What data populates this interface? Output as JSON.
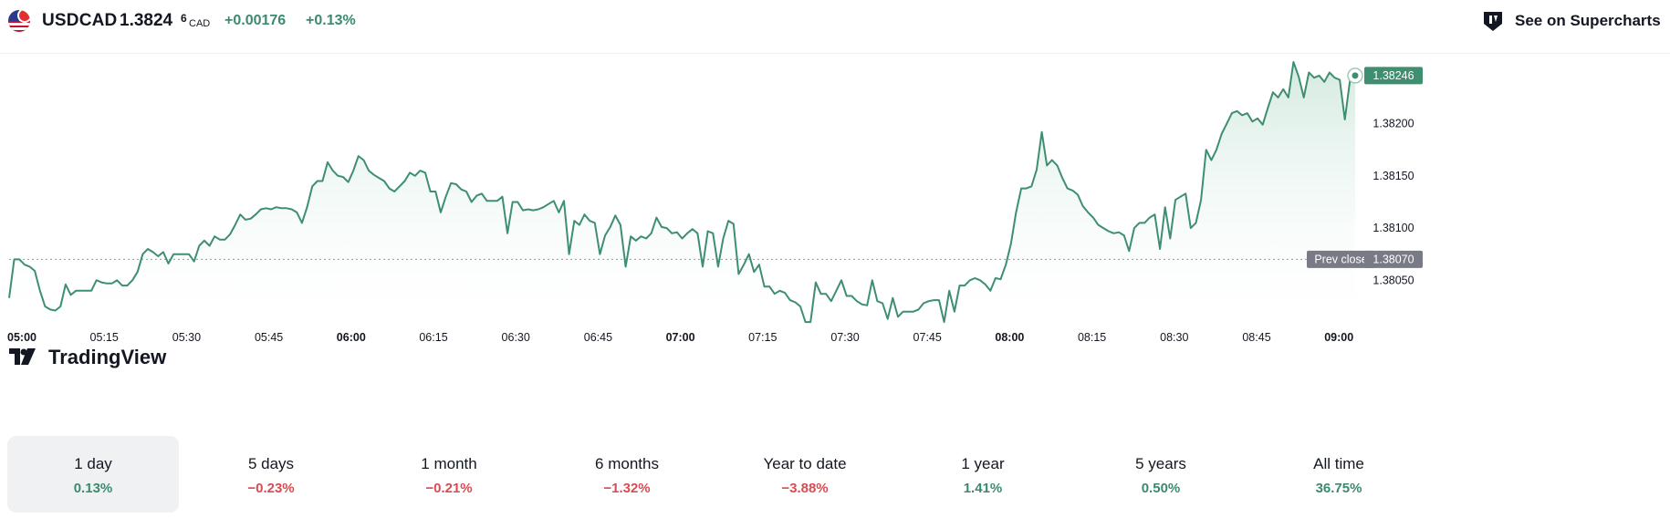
{
  "header": {
    "symbol": "USDCAD",
    "price_main": "1.3824",
    "price_sup": "6",
    "currency": "CAD",
    "change_abs": "+0.00176",
    "change_pct": "+0.13%",
    "supercharts_label": "See on Supercharts",
    "flag_icon": "usd-cad-flag-icon",
    "supercharts_icon": "tradingview-logo-icon"
  },
  "watermark": "TradingView",
  "colors": {
    "line": "#3d8f70",
    "area_top": "#d2e9df",
    "positive": "#3c8a6e",
    "negative": "#d94b52",
    "prev_close_badge": "#787b86"
  },
  "chart_data": {
    "type": "area",
    "x_tick_labels": [
      "05:00",
      "05:15",
      "05:30",
      "05:45",
      "06:00",
      "06:15",
      "06:30",
      "06:45",
      "07:00",
      "07:15",
      "07:30",
      "07:45",
      "08:00",
      "08:15",
      "08:30",
      "08:45",
      "09:00"
    ],
    "bold_ticks": [
      "05:00",
      "06:00",
      "07:00",
      "08:00",
      "09:00"
    ],
    "y_tick_labels": [
      "1.38050",
      "1.38100",
      "1.38150",
      "1.38200"
    ],
    "ylim": [
      1.38004,
      1.38266
    ],
    "last_price_label": "1.38246",
    "prev_close_label": "Prev close",
    "prev_close_value": "1.38070",
    "series": [
      {
        "values": [
          1.38033,
          1.3807,
          1.3807,
          1.38065,
          1.38063,
          1.38059,
          1.3804,
          1.38025,
          1.38022,
          1.38021,
          1.38025,
          1.38046,
          1.38036,
          1.3804,
          1.3804,
          1.3804,
          1.3804,
          1.3805,
          1.38048,
          1.38047,
          1.38047,
          1.3805,
          1.38045,
          1.38045,
          1.3805,
          1.38058,
          1.38075,
          1.3808,
          1.38077,
          1.38073,
          1.38077,
          1.38066,
          1.38075,
          1.38075,
          1.38075,
          1.38075,
          1.38068,
          1.38083,
          1.38088,
          1.38083,
          1.38092,
          1.38089,
          1.38089,
          1.38094,
          1.38103,
          1.38113,
          1.38108,
          1.38109,
          1.38113,
          1.38118,
          1.38119,
          1.38118,
          1.3812,
          1.38119,
          1.38119,
          1.38118,
          1.38115,
          1.38105,
          1.3812,
          1.3814,
          1.38145,
          1.38145,
          1.38163,
          1.38155,
          1.3815,
          1.38149,
          1.38144,
          1.38155,
          1.38169,
          1.38165,
          1.38155,
          1.38151,
          1.38148,
          1.38145,
          1.38138,
          1.38135,
          1.3814,
          1.38145,
          1.38153,
          1.3815,
          1.38155,
          1.38153,
          1.38135,
          1.38135,
          1.38115,
          1.3813,
          1.38143,
          1.38142,
          1.38137,
          1.38135,
          1.38125,
          1.38131,
          1.38133,
          1.38126,
          1.38126,
          1.38126,
          1.3813,
          1.38095,
          1.38125,
          1.38125,
          1.38117,
          1.38118,
          1.38117,
          1.38118,
          1.3812,
          1.38123,
          1.38126,
          1.38115,
          1.38126,
          1.38075,
          1.38107,
          1.38103,
          1.38113,
          1.38107,
          1.38105,
          1.38075,
          1.38093,
          1.38101,
          1.38112,
          1.38103,
          1.38063,
          1.38092,
          1.38088,
          1.38092,
          1.3809,
          1.38095,
          1.3811,
          1.38101,
          1.381,
          1.38095,
          1.38096,
          1.3809,
          1.38095,
          1.38099,
          1.38095,
          1.38063,
          1.38097,
          1.38095,
          1.38063,
          1.3809,
          1.38107,
          1.38104,
          1.38056,
          1.38065,
          1.38075,
          1.38058,
          1.38065,
          1.38044,
          1.38044,
          1.38037,
          1.3804,
          1.38038,
          1.38031,
          1.38029,
          1.38025,
          1.3801,
          1.3801,
          1.38048,
          1.38037,
          1.38037,
          1.3803,
          1.3804,
          1.3805,
          1.38035,
          1.38035,
          1.3803,
          1.38027,
          1.38026,
          1.3805,
          1.3803,
          1.38028,
          1.38013,
          1.38033,
          1.38015,
          1.3802,
          1.3802,
          1.3802,
          1.38022,
          1.38028,
          1.3803,
          1.38031,
          1.38031,
          1.3801,
          1.3804,
          1.3802,
          1.38045,
          1.38045,
          1.3805,
          1.38052,
          1.3805,
          1.38046,
          1.3804,
          1.38052,
          1.38051,
          1.38065,
          1.38085,
          1.38115,
          1.38138,
          1.38138,
          1.3814,
          1.38156,
          1.38192,
          1.3816,
          1.38165,
          1.3816,
          1.38148,
          1.38138,
          1.38136,
          1.38132,
          1.38121,
          1.38115,
          1.3811,
          1.38103,
          1.381,
          1.38097,
          1.38095,
          1.38096,
          1.38093,
          1.38078,
          1.381,
          1.38105,
          1.38105,
          1.3811,
          1.38113,
          1.3808,
          1.3812,
          1.3809,
          1.38127,
          1.3813,
          1.38133,
          1.381,
          1.38105,
          1.38127,
          1.38175,
          1.38165,
          1.38175,
          1.3819,
          1.382,
          1.3821,
          1.38212,
          1.38208,
          1.3821,
          1.38202,
          1.38205,
          1.38199,
          1.38215,
          1.3823,
          1.38225,
          1.38233,
          1.38225,
          1.38259,
          1.38245,
          1.38225,
          1.38249,
          1.38244,
          1.38246,
          1.3824,
          1.38249,
          1.38244,
          1.38242,
          1.38204,
          1.38242,
          1.38246
        ]
      }
    ]
  },
  "periods": [
    {
      "label": "1 day",
      "value": "0.13%",
      "sign": "pos",
      "active": true
    },
    {
      "label": "5 days",
      "value": "−0.23%",
      "sign": "neg",
      "active": false
    },
    {
      "label": "1 month",
      "value": "−0.21%",
      "sign": "neg",
      "active": false
    },
    {
      "label": "6 months",
      "value": "−1.32%",
      "sign": "neg",
      "active": false
    },
    {
      "label": "Year to date",
      "value": "−3.88%",
      "sign": "neg",
      "active": false
    },
    {
      "label": "1 year",
      "value": "1.41%",
      "sign": "pos",
      "active": false
    },
    {
      "label": "5 years",
      "value": "0.50%",
      "sign": "pos",
      "active": false
    },
    {
      "label": "All time",
      "value": "36.75%",
      "sign": "pos",
      "active": false
    }
  ]
}
